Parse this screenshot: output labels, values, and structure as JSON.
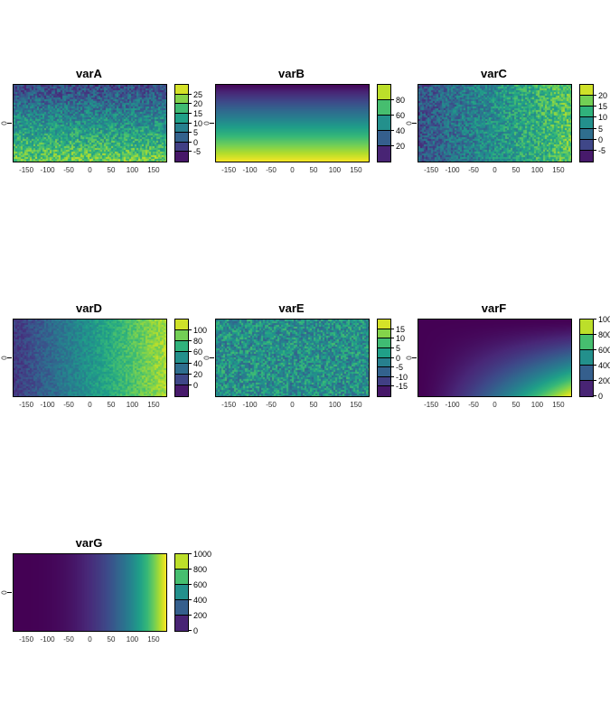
{
  "figure": {
    "background": "#ffffff",
    "axis_text_color": "#2e2e2e",
    "border_color": "#000000",
    "palette_name": "viridis",
    "viridis": [
      "#440154",
      "#482878",
      "#3e4989",
      "#31688e",
      "#26828e",
      "#1f9e89",
      "#35b779",
      "#6ece58",
      "#b5de2b",
      "#fde725"
    ]
  },
  "chart_data": [
    {
      "type": "heatmap",
      "title": "varA",
      "x_range": [
        -180,
        180
      ],
      "x_ticks": [
        -150,
        -100,
        -50,
        0,
        50,
        100,
        150
      ],
      "y_ticks": [
        "0"
      ],
      "legend_ticks": [
        25,
        20,
        15,
        10,
        5,
        0,
        -5
      ],
      "domain": [
        -10,
        30
      ],
      "legend_blocks": 8,
      "pattern": {
        "kind": "gradient-v-noise",
        "from": -1,
        "to": 21,
        "noise": 7,
        "seed": 11
      },
      "description": "noisy raster, values increase from ~-5 at top to ~25 at bottom"
    },
    {
      "type": "heatmap",
      "title": "varB",
      "x_range": [
        -180,
        180
      ],
      "x_ticks": [
        -150,
        -100,
        -50,
        0,
        50,
        100,
        150
      ],
      "y_ticks": [
        "0"
      ],
      "legend_ticks": [
        80,
        60,
        40,
        20
      ],
      "domain": [
        0,
        100
      ],
      "legend_blocks": 5,
      "pattern": {
        "kind": "gradient-v",
        "from": 1,
        "to": 99,
        "noise": 0,
        "seed": 12
      },
      "description": "smooth vertical gradient, ~0 at top to ~100 at bottom"
    },
    {
      "type": "heatmap",
      "title": "varC",
      "x_range": [
        -180,
        180
      ],
      "x_ticks": [
        -150,
        -100,
        -50,
        0,
        50,
        100,
        150
      ],
      "y_ticks": [
        "0"
      ],
      "legend_ticks": [
        20,
        15,
        10,
        5,
        0,
        -5
      ],
      "domain": [
        -10,
        25
      ],
      "legend_blocks": 7,
      "pattern": {
        "kind": "gradient-h-noise",
        "from": -1,
        "to": 16,
        "noise": 6,
        "seed": 13
      },
      "description": "noisy raster, values increase from ~-5 at left to ~20 at right"
    },
    {
      "type": "heatmap",
      "title": "varD",
      "x_range": [
        -180,
        180
      ],
      "x_ticks": [
        -150,
        -100,
        -50,
        0,
        50,
        100,
        150
      ],
      "y_ticks": [
        "0"
      ],
      "legend_ticks": [
        100,
        80,
        60,
        40,
        20,
        0
      ],
      "domain": [
        -20,
        120
      ],
      "legend_blocks": 7,
      "pattern": {
        "kind": "gradient-h-noise",
        "from": 3,
        "to": 102,
        "noise": 11,
        "seed": 14
      },
      "description": "noisy raster, values increase from ~0 at left to ~100 at right"
    },
    {
      "type": "heatmap",
      "title": "varE",
      "x_range": [
        -180,
        180
      ],
      "x_ticks": [
        -150,
        -100,
        -50,
        0,
        50,
        100,
        150
      ],
      "y_ticks": [
        "0"
      ],
      "legend_ticks": [
        15,
        10,
        5,
        0,
        -5,
        -10,
        -15
      ],
      "domain": [
        -20,
        20
      ],
      "legend_blocks": 8,
      "pattern": {
        "kind": "flat-noise",
        "from": 0,
        "to": 0,
        "noise": 8,
        "seed": 15
      },
      "description": "pure random noise around 0, range ~-15 to 15"
    },
    {
      "type": "heatmap",
      "title": "varF",
      "x_range": [
        -180,
        180
      ],
      "x_ticks": [
        -150,
        -100,
        -50,
        0,
        50,
        100,
        150
      ],
      "y_ticks": [
        "0"
      ],
      "legend_ticks": [
        1000,
        800,
        600,
        400,
        200,
        0
      ],
      "domain": [
        0,
        1000
      ],
      "legend_blocks": 5,
      "pattern": {
        "kind": "corner",
        "power": 1.5,
        "max": 1000,
        "seed": 16
      },
      "description": "smooth surface, dark at top/left rising to ~1000 at bottom-right corner"
    },
    {
      "type": "heatmap",
      "title": "varG",
      "x_range": [
        -180,
        180
      ],
      "x_ticks": [
        -150,
        -100,
        -50,
        0,
        50,
        100,
        150
      ],
      "y_ticks": [
        "0"
      ],
      "legend_ticks": [
        1000,
        800,
        600,
        400,
        200,
        0
      ],
      "domain": [
        0,
        1000
      ],
      "legend_blocks": 5,
      "pattern": {
        "kind": "power-h",
        "power": 3,
        "max": 1000,
        "seed": 17
      },
      "description": "smooth horizontal gradient, cubic rise from 0 at left to 1000 at right"
    }
  ]
}
